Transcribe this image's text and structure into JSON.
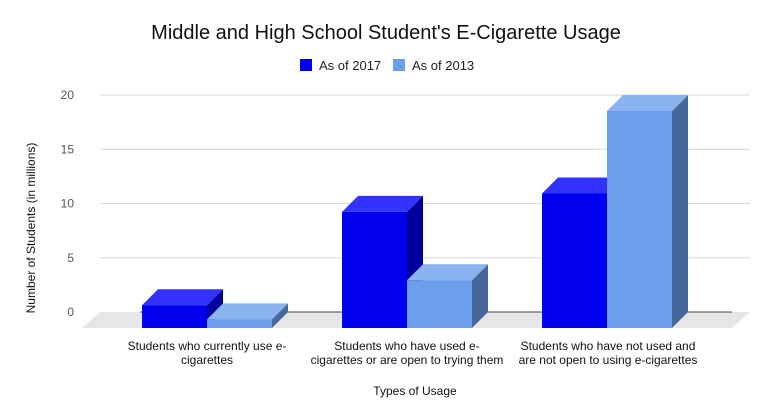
{
  "chart_data": {
    "type": "bar",
    "title": "Middle and High School Student's E-Cigarette Usage",
    "xlabel": "Types of Usage",
    "ylabel": "Number of Students  (in millions)",
    "categories": [
      "Students who currently use e-cigarettes",
      "Students who have used e-cigarettes or are open to trying them",
      "Students who have not used and are not open to using e-cigarettes"
    ],
    "category_lines": [
      [
        "Students who currently use e-",
        "cigarettes"
      ],
      [
        "Students who have used e-",
        "cigarettes or are open to trying them"
      ],
      [
        "Students who have not used and",
        "are not open to using e-cigarettes"
      ]
    ],
    "series": [
      {
        "name": "As of 2017",
        "values": [
          2.1,
          10.7,
          12.4
        ],
        "color": "#0000ee",
        "top_color": "#3333ff",
        "side_color": "#00009a"
      },
      {
        "name": "As of 2013",
        "values": [
          0.8,
          4.4,
          20.0
        ],
        "color": "#6d9eeb",
        "top_color": "#8ab3f0",
        "side_color": "#46679a"
      }
    ],
    "ylim": [
      0,
      20
    ],
    "yticks": [
      0,
      5,
      10,
      15,
      20
    ],
    "grid": true,
    "legend_position": "top",
    "style": "3d-bar",
    "colors": {
      "grid": "#d9d9d9",
      "floor": "#e6e6e6"
    }
  }
}
